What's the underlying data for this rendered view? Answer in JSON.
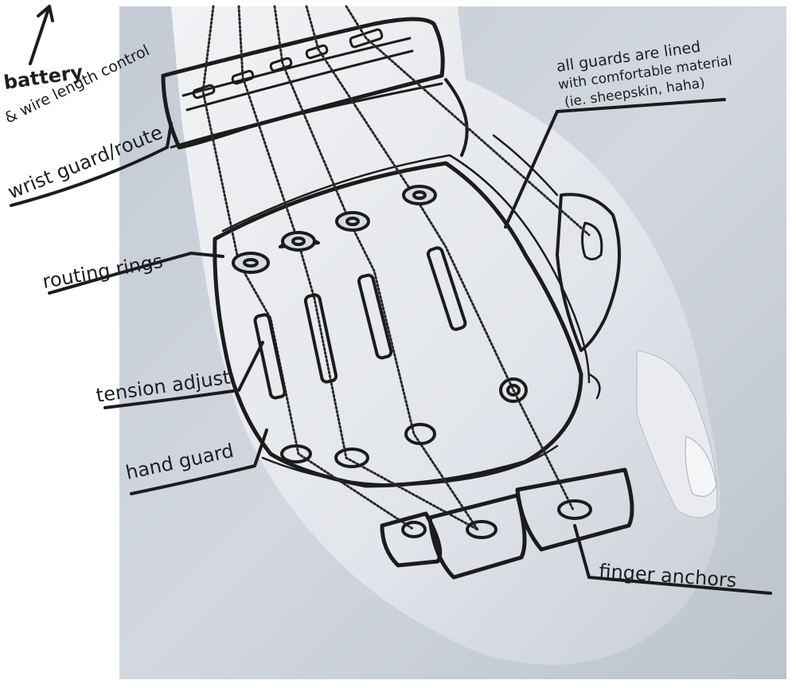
{
  "labels": {
    "battery": "battery",
    "wire_length_control": "& wire length control",
    "wrist_guard": "wrist guard/route",
    "lining_line1": "all guards are lined",
    "lining_line2": "with comfortable material",
    "lining_line3": "(ie. sheepskin, haha)",
    "routing_rings": "routing rings",
    "tension_adjust": "tension adjust",
    "hand_guard": "hand guard",
    "finger_anchors": "finger anchors"
  },
  "icons": {
    "arrow": "arrow-up-right-icon"
  },
  "colors": {
    "photo_background": "#cfd5dd",
    "ink": "#1c1c1c",
    "skin_light": "#eceef1"
  }
}
